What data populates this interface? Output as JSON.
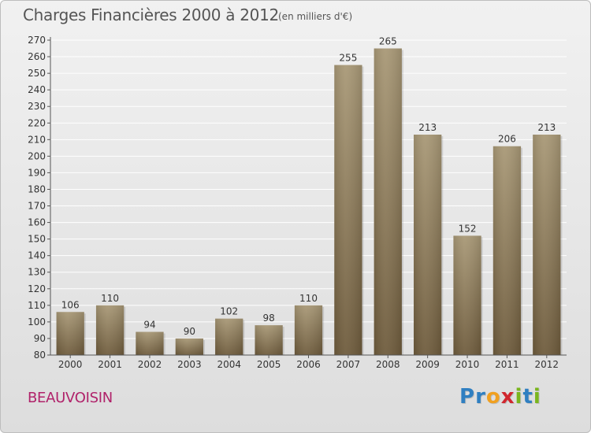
{
  "page": {
    "title": "Charges Financières 2000 à 2012",
    "subtitle": "(en milliers d'€)",
    "place": "BEAUVOISIN",
    "logo": {
      "text": "Proxiti",
      "letters": [
        {
          "char": "P",
          "color": "#2f7fc1"
        },
        {
          "char": "r",
          "color": "#2f7fc1"
        },
        {
          "char": "o",
          "color": "#f0a020"
        },
        {
          "char": "x",
          "color": "#d0262e"
        },
        {
          "char": "i",
          "color": "#7ab51d"
        },
        {
          "char": "t",
          "color": "#2f7fc1"
        },
        {
          "char": "i",
          "color": "#7ab51d"
        }
      ]
    }
  },
  "chart_data": {
    "type": "bar",
    "title": "Charges Financières 2000 à 2012",
    "subtitle": "(en milliers d'€)",
    "categories": [
      "2000",
      "2001",
      "2002",
      "2003",
      "2004",
      "2005",
      "2006",
      "2007",
      "2008",
      "2009",
      "2010",
      "2011",
      "2012"
    ],
    "values": [
      106,
      110,
      94,
      90,
      102,
      98,
      110,
      255,
      265,
      213,
      152,
      206,
      213
    ],
    "ylim": [
      80,
      270
    ],
    "yticks": [
      80,
      90,
      100,
      110,
      120,
      130,
      140,
      150,
      160,
      170,
      180,
      190,
      200,
      210,
      220,
      230,
      240,
      250,
      260,
      270
    ],
    "grid": true,
    "legend": "none",
    "colors": {
      "bar_top": "#a89876",
      "bar_bottom": "#6e5b3c",
      "grid": "#ffffff",
      "axis": "#555555"
    }
  }
}
